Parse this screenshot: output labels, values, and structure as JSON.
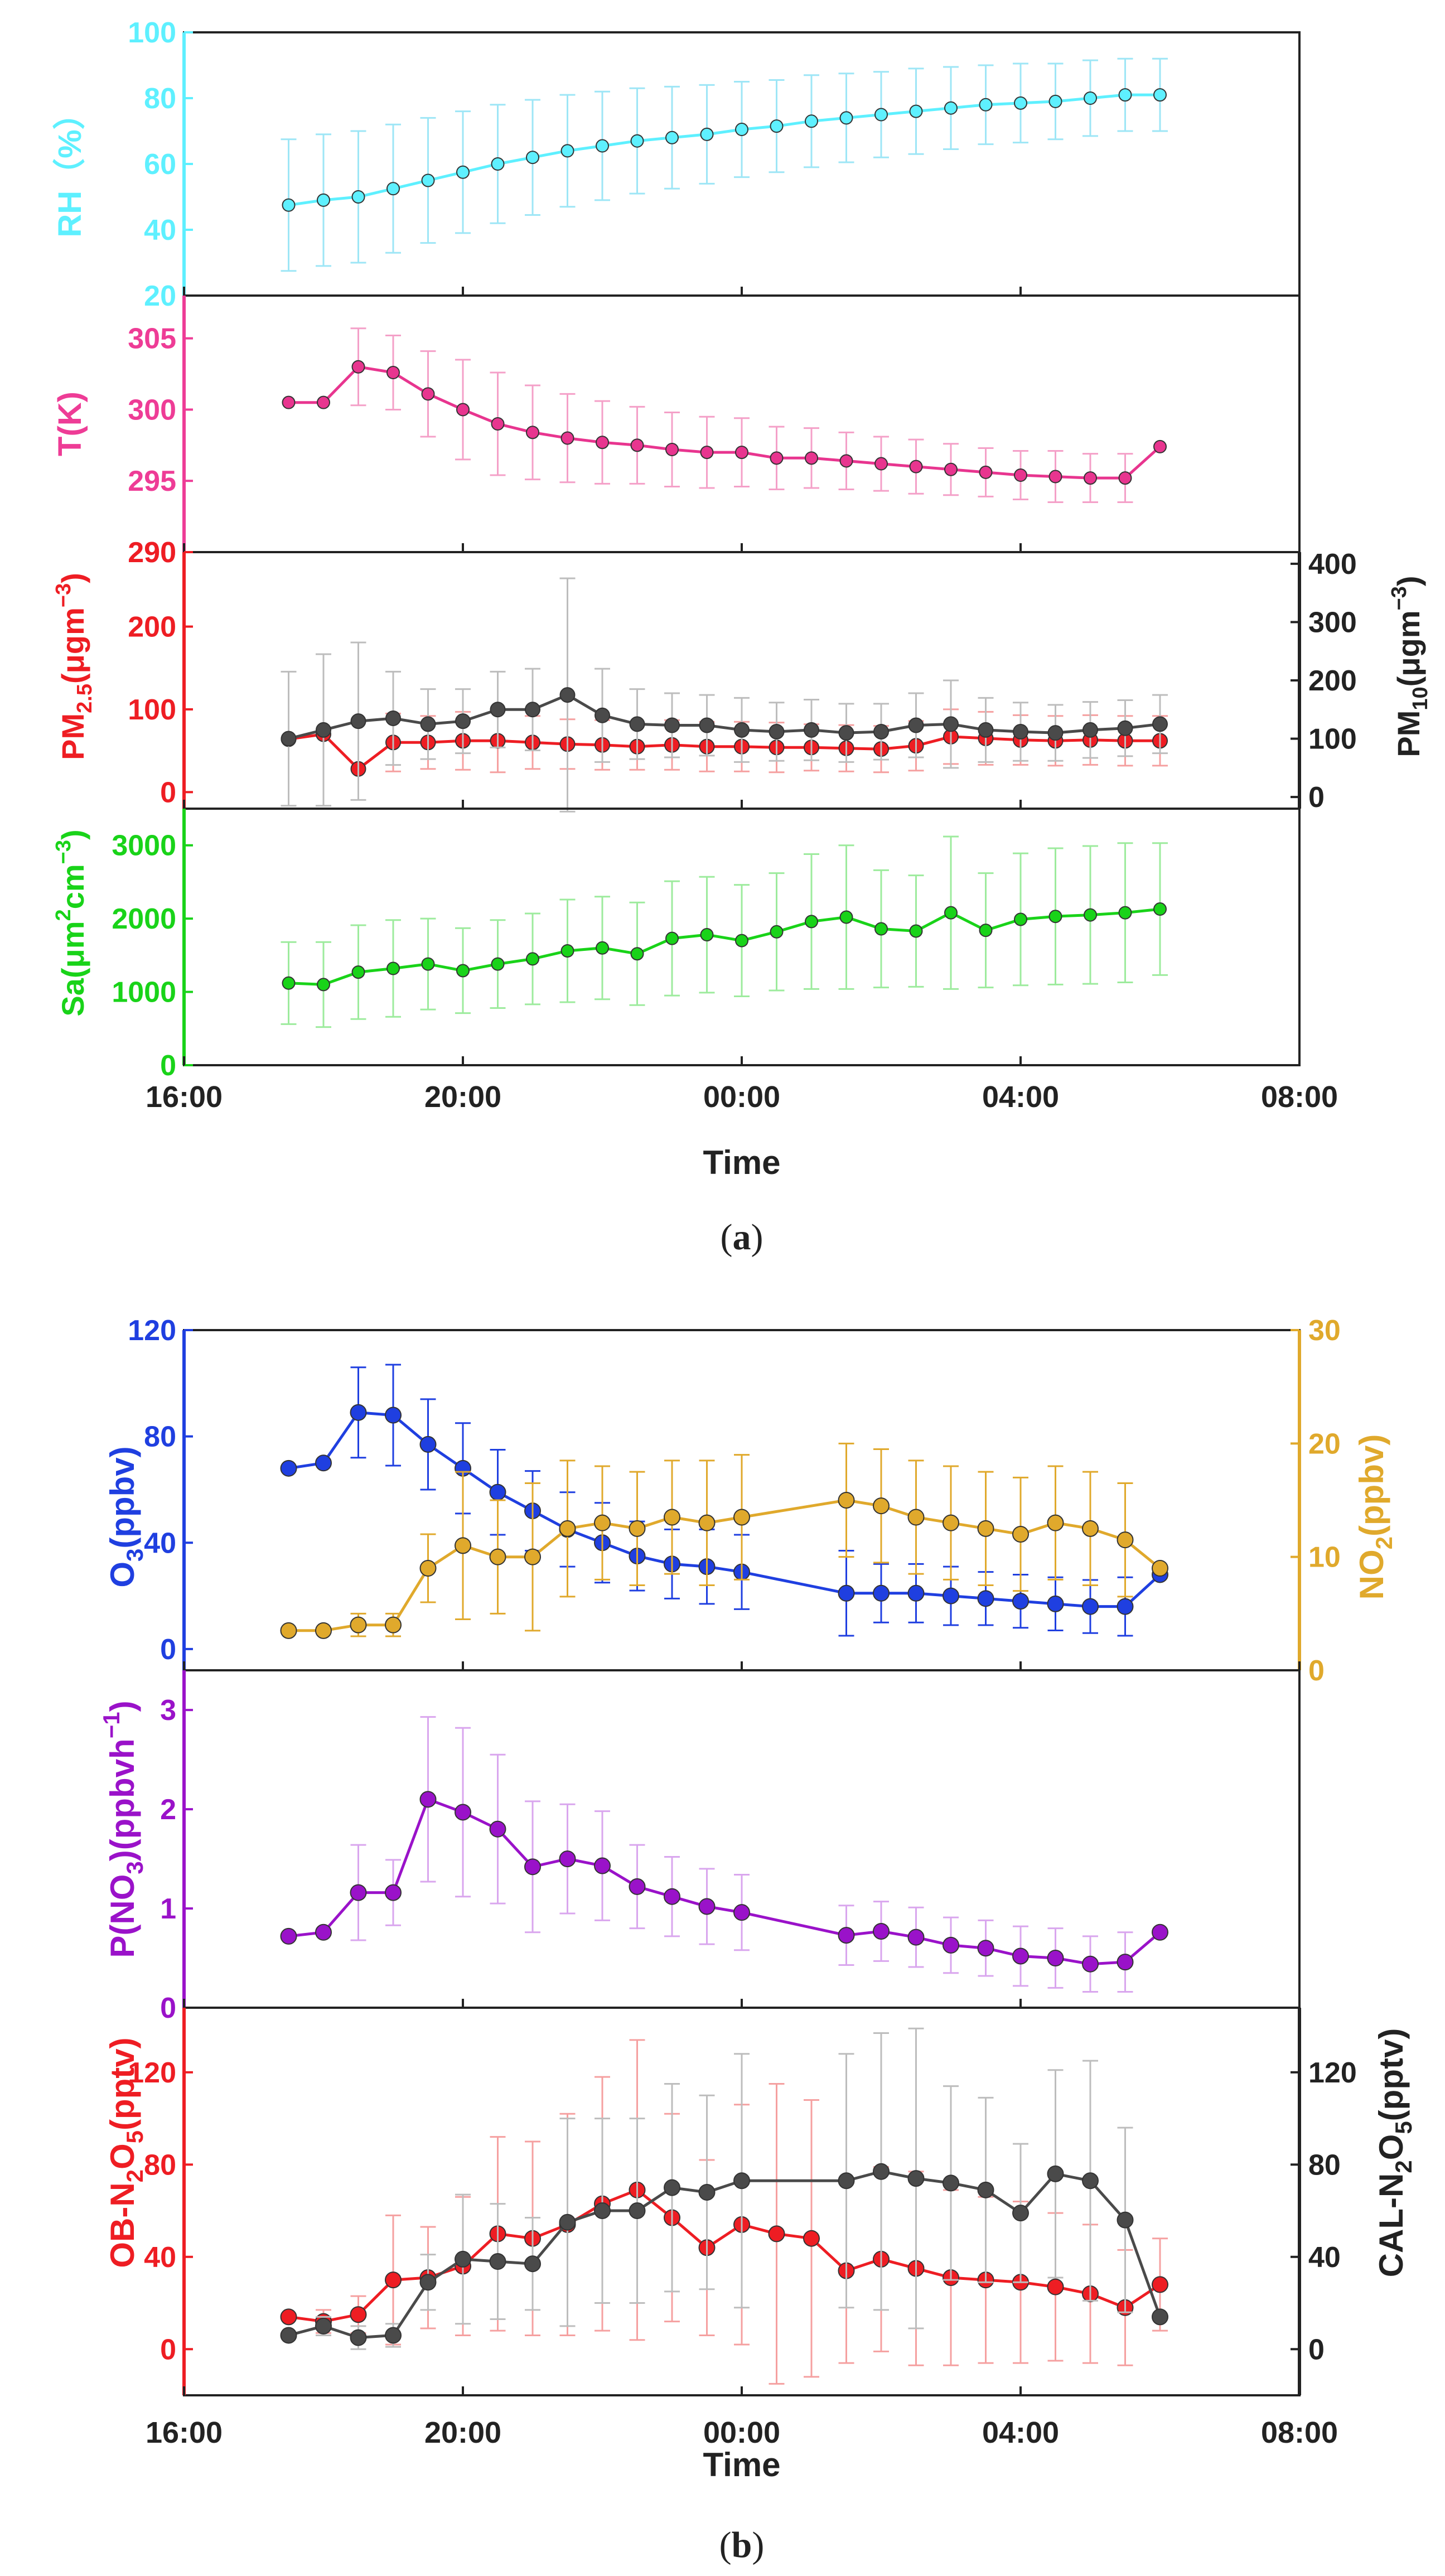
{
  "figure": {
    "panel_a_caption": {
      "open": "(",
      "letter": "a",
      "close": ")"
    },
    "panel_b_caption": {
      "open": "(",
      "letter": "b",
      "close": ")"
    },
    "x_axis_title": "Time",
    "x_ticks": [
      "16:00",
      "20:00",
      "00:00",
      "04:00",
      "08:00"
    ]
  },
  "chart_data": [
    {
      "id": "rh",
      "type": "line",
      "panel": "a",
      "ylabel": "RH（%）",
      "y_color": "#5ef0ff",
      "ylim": [
        20,
        100
      ],
      "yticks": [
        20,
        40,
        60,
        80,
        100
      ],
      "series": [
        {
          "name": "RH",
          "color": "#5ef0ff",
          "err_color": "#9ee6f6",
          "x": [
            17.5,
            18.0,
            18.5,
            19.0,
            19.5,
            20.0,
            20.5,
            21.0,
            21.5,
            22.0,
            22.5,
            23.0,
            23.5,
            24.0,
            24.5,
            25.0,
            25.5,
            26.0,
            26.5,
            27.0,
            27.5,
            28.0,
            28.5,
            29.0,
            29.5,
            30.0
          ],
          "values": [
            47.5,
            49,
            50,
            52.5,
            55,
            57.5,
            60,
            62,
            64,
            65.5,
            67,
            68,
            69,
            70.5,
            71.5,
            73,
            74,
            75,
            76,
            77,
            78,
            78.5,
            79,
            80,
            81,
            81
          ],
          "errors": [
            20,
            20,
            20,
            19.5,
            19,
            18.5,
            18,
            17.5,
            17,
            16.5,
            16,
            15.5,
            15,
            14.5,
            14,
            14,
            13.5,
            13,
            13,
            12.5,
            12,
            12,
            11.5,
            11.5,
            11,
            11
          ]
        }
      ]
    },
    {
      "id": "t",
      "type": "line",
      "panel": "a",
      "ylabel": "T(K)",
      "y_color": "#ee3c96",
      "ylim": [
        290,
        308
      ],
      "yticks": [
        290,
        295,
        300,
        305
      ],
      "series": [
        {
          "name": "T",
          "color": "#e8358f",
          "err_color": "#f4a0c8",
          "x": [
            17.5,
            18.0,
            18.5,
            19.0,
            19.5,
            20.0,
            20.5,
            21.0,
            21.5,
            22.0,
            22.5,
            23.0,
            23.5,
            24.0,
            24.5,
            25.0,
            25.5,
            26.0,
            26.5,
            27.0,
            27.5,
            28.0,
            28.5,
            29.0,
            29.5,
            30.0
          ],
          "values": [
            300.5,
            300.5,
            303,
            302.6,
            301.1,
            300,
            299,
            298.4,
            298,
            297.7,
            297.5,
            297.2,
            297,
            297,
            296.6,
            296.6,
            296.4,
            296.2,
            296,
            295.8,
            295.6,
            295.4,
            295.3,
            295.2,
            295.2,
            297.4
          ],
          "errors": [
            null,
            null,
            2.7,
            2.6,
            3,
            3.5,
            3.6,
            3.3,
            3.1,
            2.9,
            2.7,
            2.6,
            2.5,
            2.4,
            2.2,
            2.1,
            2,
            1.9,
            1.9,
            1.8,
            1.7,
            1.7,
            1.8,
            1.7,
            1.7,
            null
          ]
        }
      ]
    },
    {
      "id": "pm",
      "type": "line",
      "panel": "a",
      "ylabel_left": {
        "main": "PM",
        "sub": "2.5",
        "unit": "(μgm",
        "sup": "−3",
        "close": ")"
      },
      "ylabel_right": {
        "main": "PM",
        "sub": "10",
        "unit": "(μgm",
        "sup": "−3",
        "close": ")"
      },
      "y_color_left": "#ee1d23",
      "y_color_right": "#222222",
      "ylim": [
        -20,
        290
      ],
      "yticks": [
        0,
        100,
        200,
        290
      ],
      "y2lim": [
        -20,
        420
      ],
      "y2ticks": [
        0,
        100,
        200,
        300,
        400
      ],
      "series": [
        {
          "name": "PM2.5",
          "axis": "left",
          "color": "#ee1d23",
          "err_color": "#f5a0a0",
          "x": [
            17.5,
            18.0,
            18.5,
            19.0,
            19.5,
            20.0,
            20.5,
            21.0,
            21.5,
            22.0,
            22.5,
            23.0,
            23.5,
            24.0,
            24.5,
            25.0,
            25.5,
            26.0,
            26.5,
            27.0,
            27.5,
            28.0,
            28.5,
            29.0,
            29.5,
            30.0
          ],
          "values": [
            64,
            70,
            28,
            60,
            60,
            62,
            62,
            60,
            58,
            57,
            55,
            57,
            55,
            55,
            54,
            54,
            53,
            52,
            56,
            67,
            65,
            63,
            62,
            63,
            62,
            62
          ],
          "errors": [
            null,
            null,
            null,
            35,
            32,
            35,
            38,
            32,
            30,
            30,
            28,
            30,
            30,
            30,
            30,
            28,
            28,
            28,
            30,
            33,
            32,
            30,
            30,
            30,
            30,
            30
          ]
        },
        {
          "name": "PM10",
          "axis": "right",
          "color": "#4a4a4a",
          "err_color": "#bdbdbd",
          "x": [
            17.5,
            18.0,
            18.5,
            19.0,
            19.5,
            20.0,
            20.5,
            21.0,
            21.5,
            22.0,
            22.5,
            23.0,
            23.5,
            24.0,
            24.5,
            25.0,
            25.5,
            26.0,
            26.5,
            27.0,
            27.5,
            28.0,
            28.5,
            29.0,
            29.5,
            30.0
          ],
          "values": [
            100,
            115,
            130,
            135,
            125,
            130,
            150,
            150,
            175,
            140,
            125,
            123,
            123,
            115,
            112,
            115,
            110,
            112,
            123,
            125,
            115,
            112,
            110,
            115,
            118,
            125
          ],
          "errors": [
            115,
            130,
            135,
            80,
            60,
            55,
            65,
            70,
            200,
            80,
            60,
            55,
            52,
            55,
            50,
            52,
            50,
            48,
            55,
            75,
            55,
            50,
            48,
            48,
            48,
            50
          ]
        }
      ]
    },
    {
      "id": "sa",
      "type": "line",
      "panel": "a",
      "ylabel": {
        "main": "Sa(μm",
        "sup1": "2",
        "mid": "cm",
        "sup2": "−3",
        "close": ")"
      },
      "y_color": "#19d319",
      "ylim": [
        0,
        3500
      ],
      "yticks": [
        0,
        1000,
        2000,
        3000
      ],
      "series": [
        {
          "name": "Sa",
          "color": "#19d319",
          "err_color": "#9deb9d",
          "x": [
            17.5,
            18.0,
            18.5,
            19.0,
            19.5,
            20.0,
            20.5,
            21.0,
            21.5,
            22.0,
            22.5,
            23.0,
            23.5,
            24.0,
            24.5,
            25.0,
            25.5,
            26.0,
            26.5,
            27.0,
            27.5,
            28.0,
            28.5,
            29.0,
            29.5,
            30.0
          ],
          "values": [
            1120,
            1100,
            1270,
            1320,
            1380,
            1290,
            1380,
            1450,
            1560,
            1600,
            1520,
            1730,
            1780,
            1700,
            1820,
            1960,
            2020,
            1860,
            1830,
            2080,
            1840,
            1990,
            2030,
            2050,
            2080,
            2130
          ],
          "errors": [
            560,
            580,
            640,
            660,
            620,
            580,
            600,
            620,
            700,
            700,
            700,
            780,
            790,
            760,
            800,
            920,
            980,
            800,
            760,
            1040,
            780,
            900,
            930,
            940,
            950,
            900
          ]
        }
      ]
    },
    {
      "id": "o3no2",
      "type": "line",
      "panel": "b",
      "ylabel_left": {
        "main": "O",
        "sub": "3",
        "unit": "(ppbv)"
      },
      "ylabel_right": {
        "main": "NO",
        "sub": "2",
        "unit": "(ppbv)"
      },
      "y_color_left": "#1f3fe0",
      "y_color_right": "#e0a92c",
      "ylim": [
        -8,
        120
      ],
      "yticks": [
        0,
        40,
        80,
        120
      ],
      "y2lim": [
        0,
        30
      ],
      "y2ticks": [
        0,
        10,
        20,
        30
      ],
      "series": [
        {
          "name": "O3",
          "axis": "left",
          "color": "#1f3fe0",
          "err_color": "#1f3fe0",
          "x": [
            17.5,
            18.0,
            18.5,
            19.0,
            19.5,
            20.0,
            20.5,
            21.0,
            21.5,
            22.0,
            22.5,
            23.0,
            23.5,
            24.0,
            25.5,
            26.0,
            26.5,
            27.0,
            27.5,
            28.0,
            28.5,
            29.0,
            29.5,
            30.0
          ],
          "values": [
            68,
            70,
            89,
            88,
            77,
            68,
            59,
            52,
            45,
            40,
            35,
            32,
            31,
            29,
            21,
            21,
            21,
            20,
            19,
            18,
            17,
            16,
            16,
            28
          ],
          "errors": [
            null,
            null,
            17,
            19,
            17,
            17,
            16,
            15,
            14,
            15,
            13,
            13,
            14,
            14,
            16,
            11,
            11,
            11,
            10,
            10,
            10,
            10,
            11,
            null
          ]
        },
        {
          "name": "NO2",
          "axis": "right",
          "color": "#e0a92c",
          "err_color": "#e0a92c",
          "x": [
            17.5,
            18.0,
            18.5,
            19.0,
            19.5,
            20.0,
            20.5,
            21.0,
            21.5,
            22.0,
            22.5,
            23.0,
            23.5,
            24.0,
            25.5,
            26.0,
            26.5,
            27.0,
            27.5,
            28.0,
            28.5,
            29.0,
            29.5,
            30.0
          ],
          "values": [
            3.5,
            3.5,
            4,
            4,
            9,
            11,
            10,
            10,
            12.5,
            13,
            12.5,
            13.5,
            13,
            13.5,
            15,
            14.5,
            13.5,
            13,
            12.5,
            12,
            13,
            12.5,
            11.5,
            9
          ],
          "errors": [
            null,
            null,
            1,
            1,
            3,
            6.5,
            5,
            6.5,
            6,
            5,
            5,
            5,
            5.5,
            5.5,
            5,
            5,
            5,
            5,
            5,
            5,
            5,
            5,
            5,
            null
          ]
        }
      ]
    },
    {
      "id": "pno3",
      "type": "line",
      "panel": "b",
      "ylabel": {
        "main": "P(NO",
        "sub": "3",
        "unit": ")(ppbvh",
        "sup": "−1",
        "close": ")"
      },
      "y_color": "#9a12c9",
      "ylim": [
        0,
        3.4
      ],
      "yticks": [
        0,
        1,
        2,
        3
      ],
      "series": [
        {
          "name": "P(NO3)",
          "color": "#9a12c9",
          "err_color": "#d9a6ee",
          "x": [
            17.5,
            18.0,
            18.5,
            19.0,
            19.5,
            20.0,
            20.5,
            21.0,
            21.5,
            22.0,
            22.5,
            23.0,
            23.5,
            24.0,
            25.5,
            26.0,
            26.5,
            27.0,
            27.5,
            28.0,
            28.5,
            29.0,
            29.5,
            30.0
          ],
          "values": [
            0.72,
            0.76,
            1.16,
            1.16,
            2.1,
            1.97,
            1.8,
            1.42,
            1.5,
            1.43,
            1.22,
            1.12,
            1.02,
            0.96,
            0.73,
            0.77,
            0.71,
            0.63,
            0.6,
            0.52,
            0.5,
            0.44,
            0.46,
            0.76
          ],
          "errors": [
            null,
            null,
            0.48,
            0.33,
            0.83,
            0.85,
            0.75,
            0.66,
            0.55,
            0.55,
            0.42,
            0.4,
            0.38,
            0.38,
            0.3,
            0.3,
            0.3,
            0.28,
            0.28,
            0.3,
            0.3,
            0.28,
            0.3,
            null
          ]
        }
      ]
    },
    {
      "id": "n2o5",
      "type": "line",
      "panel": "b",
      "ylabel_left": {
        "main": "OB-N",
        "sub1": "2",
        "mid": "O",
        "sub2": "5",
        "unit": "(pptv)"
      },
      "ylabel_right": {
        "main": "CAL-N",
        "sub1": "2",
        "mid": "O",
        "sub2": "5",
        "unit": "(pptv)"
      },
      "y_color_left": "#ee1d23",
      "y_color_right": "#222222",
      "ylim": [
        -20,
        148
      ],
      "yticks": [
        0,
        40,
        80,
        120
      ],
      "y2lim": [
        -20,
        148
      ],
      "y2ticks": [
        0,
        40,
        80,
        120
      ],
      "series": [
        {
          "name": "OB-N2O5",
          "axis": "left",
          "color": "#ee1d23",
          "err_color": "#f5a0a0",
          "x": [
            17.5,
            18.0,
            18.5,
            19.0,
            19.5,
            20.0,
            20.5,
            21.0,
            21.5,
            22.0,
            22.5,
            23.0,
            23.5,
            24.0,
            24.5,
            25.0,
            25.5,
            26.0,
            26.5,
            27.0,
            27.5,
            28.0,
            28.5,
            29.0,
            29.5,
            30.0
          ],
          "values": [
            14,
            12,
            15,
            30,
            31,
            36,
            50,
            48,
            54,
            63,
            69,
            57,
            44,
            54,
            50,
            48,
            34,
            39,
            35,
            31,
            30,
            29,
            27,
            24,
            18,
            28
          ],
          "errors": [
            null,
            5,
            8,
            28,
            22,
            30,
            42,
            42,
            48,
            55,
            65,
            45,
            38,
            52,
            65,
            60,
            40,
            40,
            42,
            38,
            36,
            35,
            32,
            30,
            25,
            20
          ]
        },
        {
          "name": "CAL-N2O5",
          "axis": "right",
          "color": "#4a4a4a",
          "err_color": "#bdbdbd",
          "x": [
            17.5,
            18.0,
            18.5,
            19.0,
            19.5,
            20.0,
            20.5,
            21.0,
            21.5,
            22.0,
            22.5,
            23.0,
            23.5,
            24.0,
            25.5,
            26.0,
            26.5,
            27.0,
            27.5,
            28.0,
            28.5,
            29.0,
            29.5,
            30.0
          ],
          "values": [
            6,
            10,
            5,
            6,
            29,
            39,
            38,
            37,
            55,
            60,
            60,
            70,
            68,
            73,
            73,
            77,
            74,
            72,
            69,
            59,
            76,
            73,
            56,
            14
          ],
          "errors": [
            null,
            4,
            5,
            5,
            12,
            28,
            25,
            20,
            45,
            40,
            40,
            45,
            42,
            55,
            55,
            60,
            65,
            42,
            40,
            30,
            45,
            52,
            40,
            null
          ]
        }
      ]
    }
  ]
}
